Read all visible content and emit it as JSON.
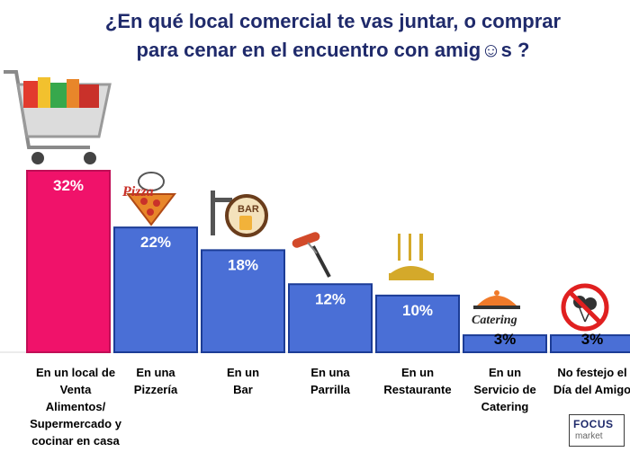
{
  "title_lines": [
    "¿En qué local comercial te vas juntar, o comprar",
    "para cenar en el encuentro con amig☺s ?"
  ],
  "colors": {
    "title": "#1f2a6b",
    "highlight_bar": "#f0126a",
    "bar": "#4a6fd6",
    "bar_edge": "#1c3c96"
  },
  "chart_data": {
    "type": "bar",
    "categories": [
      "En un local de Venta\nAlimentos/\nSupermercado y\ncocinar en casa",
      "En una\nPizzería",
      "En un\nBar",
      "En una\nParrilla",
      "En un\nRestaurante",
      "En un\nServicio de\nCatering",
      "No festejo el\nDía del Amigo"
    ],
    "values": [
      32,
      22,
      18,
      12,
      10,
      3,
      3
    ],
    "data_labels": [
      "32%",
      "22%",
      "18%",
      "12%",
      "10%",
      "3%",
      "3%"
    ],
    "highlight_index": 0,
    "ylim": [
      0,
      32
    ],
    "grid": false,
    "legend": "none"
  },
  "icons": [
    "shopping-cart-icon",
    "pizza-icon",
    "bar-sign-icon",
    "sausage-fork-icon",
    "cutlery-icon",
    "catering-cloche-icon",
    "no-balloons-icon"
  ],
  "icon_texts": {
    "pizza": "Pizza",
    "bar": "BAR",
    "catering": "Catering"
  },
  "logo": {
    "line1": "FOCUS",
    "line2": "market"
  }
}
